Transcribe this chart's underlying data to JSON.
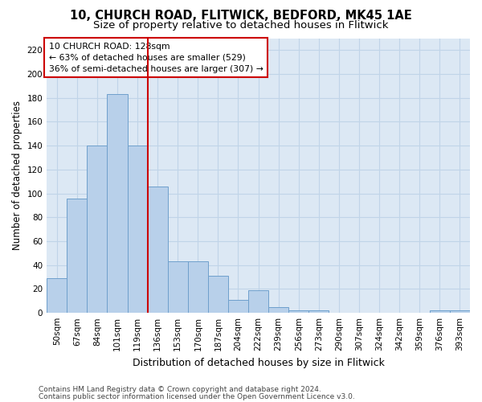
{
  "title1": "10, CHURCH ROAD, FLITWICK, BEDFORD, MK45 1AE",
  "title2": "Size of property relative to detached houses in Flitwick",
  "xlabel": "Distribution of detached houses by size in Flitwick",
  "ylabel": "Number of detached properties",
  "categories": [
    "50sqm",
    "67sqm",
    "84sqm",
    "101sqm",
    "119sqm",
    "136sqm",
    "153sqm",
    "170sqm",
    "187sqm",
    "204sqm",
    "222sqm",
    "239sqm",
    "256sqm",
    "273sqm",
    "290sqm",
    "307sqm",
    "324sqm",
    "342sqm",
    "359sqm",
    "376sqm",
    "393sqm"
  ],
  "values": [
    29,
    96,
    140,
    183,
    140,
    106,
    43,
    43,
    31,
    11,
    19,
    5,
    2,
    2,
    0,
    0,
    0,
    0,
    0,
    2,
    2
  ],
  "bar_color": "#b8d0ea",
  "bar_edge_color": "#6fa0cc",
  "vline_x": 5,
  "vline_color": "#cc0000",
  "annotation_text": "10 CHURCH ROAD: 128sqm\n← 63% of detached houses are smaller (529)\n36% of semi-detached houses are larger (307) →",
  "annotation_box_color": "#ffffff",
  "annotation_box_edge": "#cc0000",
  "ylim": [
    0,
    230
  ],
  "yticks": [
    0,
    20,
    40,
    60,
    80,
    100,
    120,
    140,
    160,
    180,
    200,
    220
  ],
  "grid_color": "#c0d4e8",
  "background_color": "#dce8f4",
  "footer1": "Contains HM Land Registry data © Crown copyright and database right 2024.",
  "footer2": "Contains public sector information licensed under the Open Government Licence v3.0.",
  "title1_fontsize": 10.5,
  "title2_fontsize": 9.5,
  "tick_fontsize": 7.5,
  "ylabel_fontsize": 8.5,
  "xlabel_fontsize": 9,
  "footer_fontsize": 6.5
}
